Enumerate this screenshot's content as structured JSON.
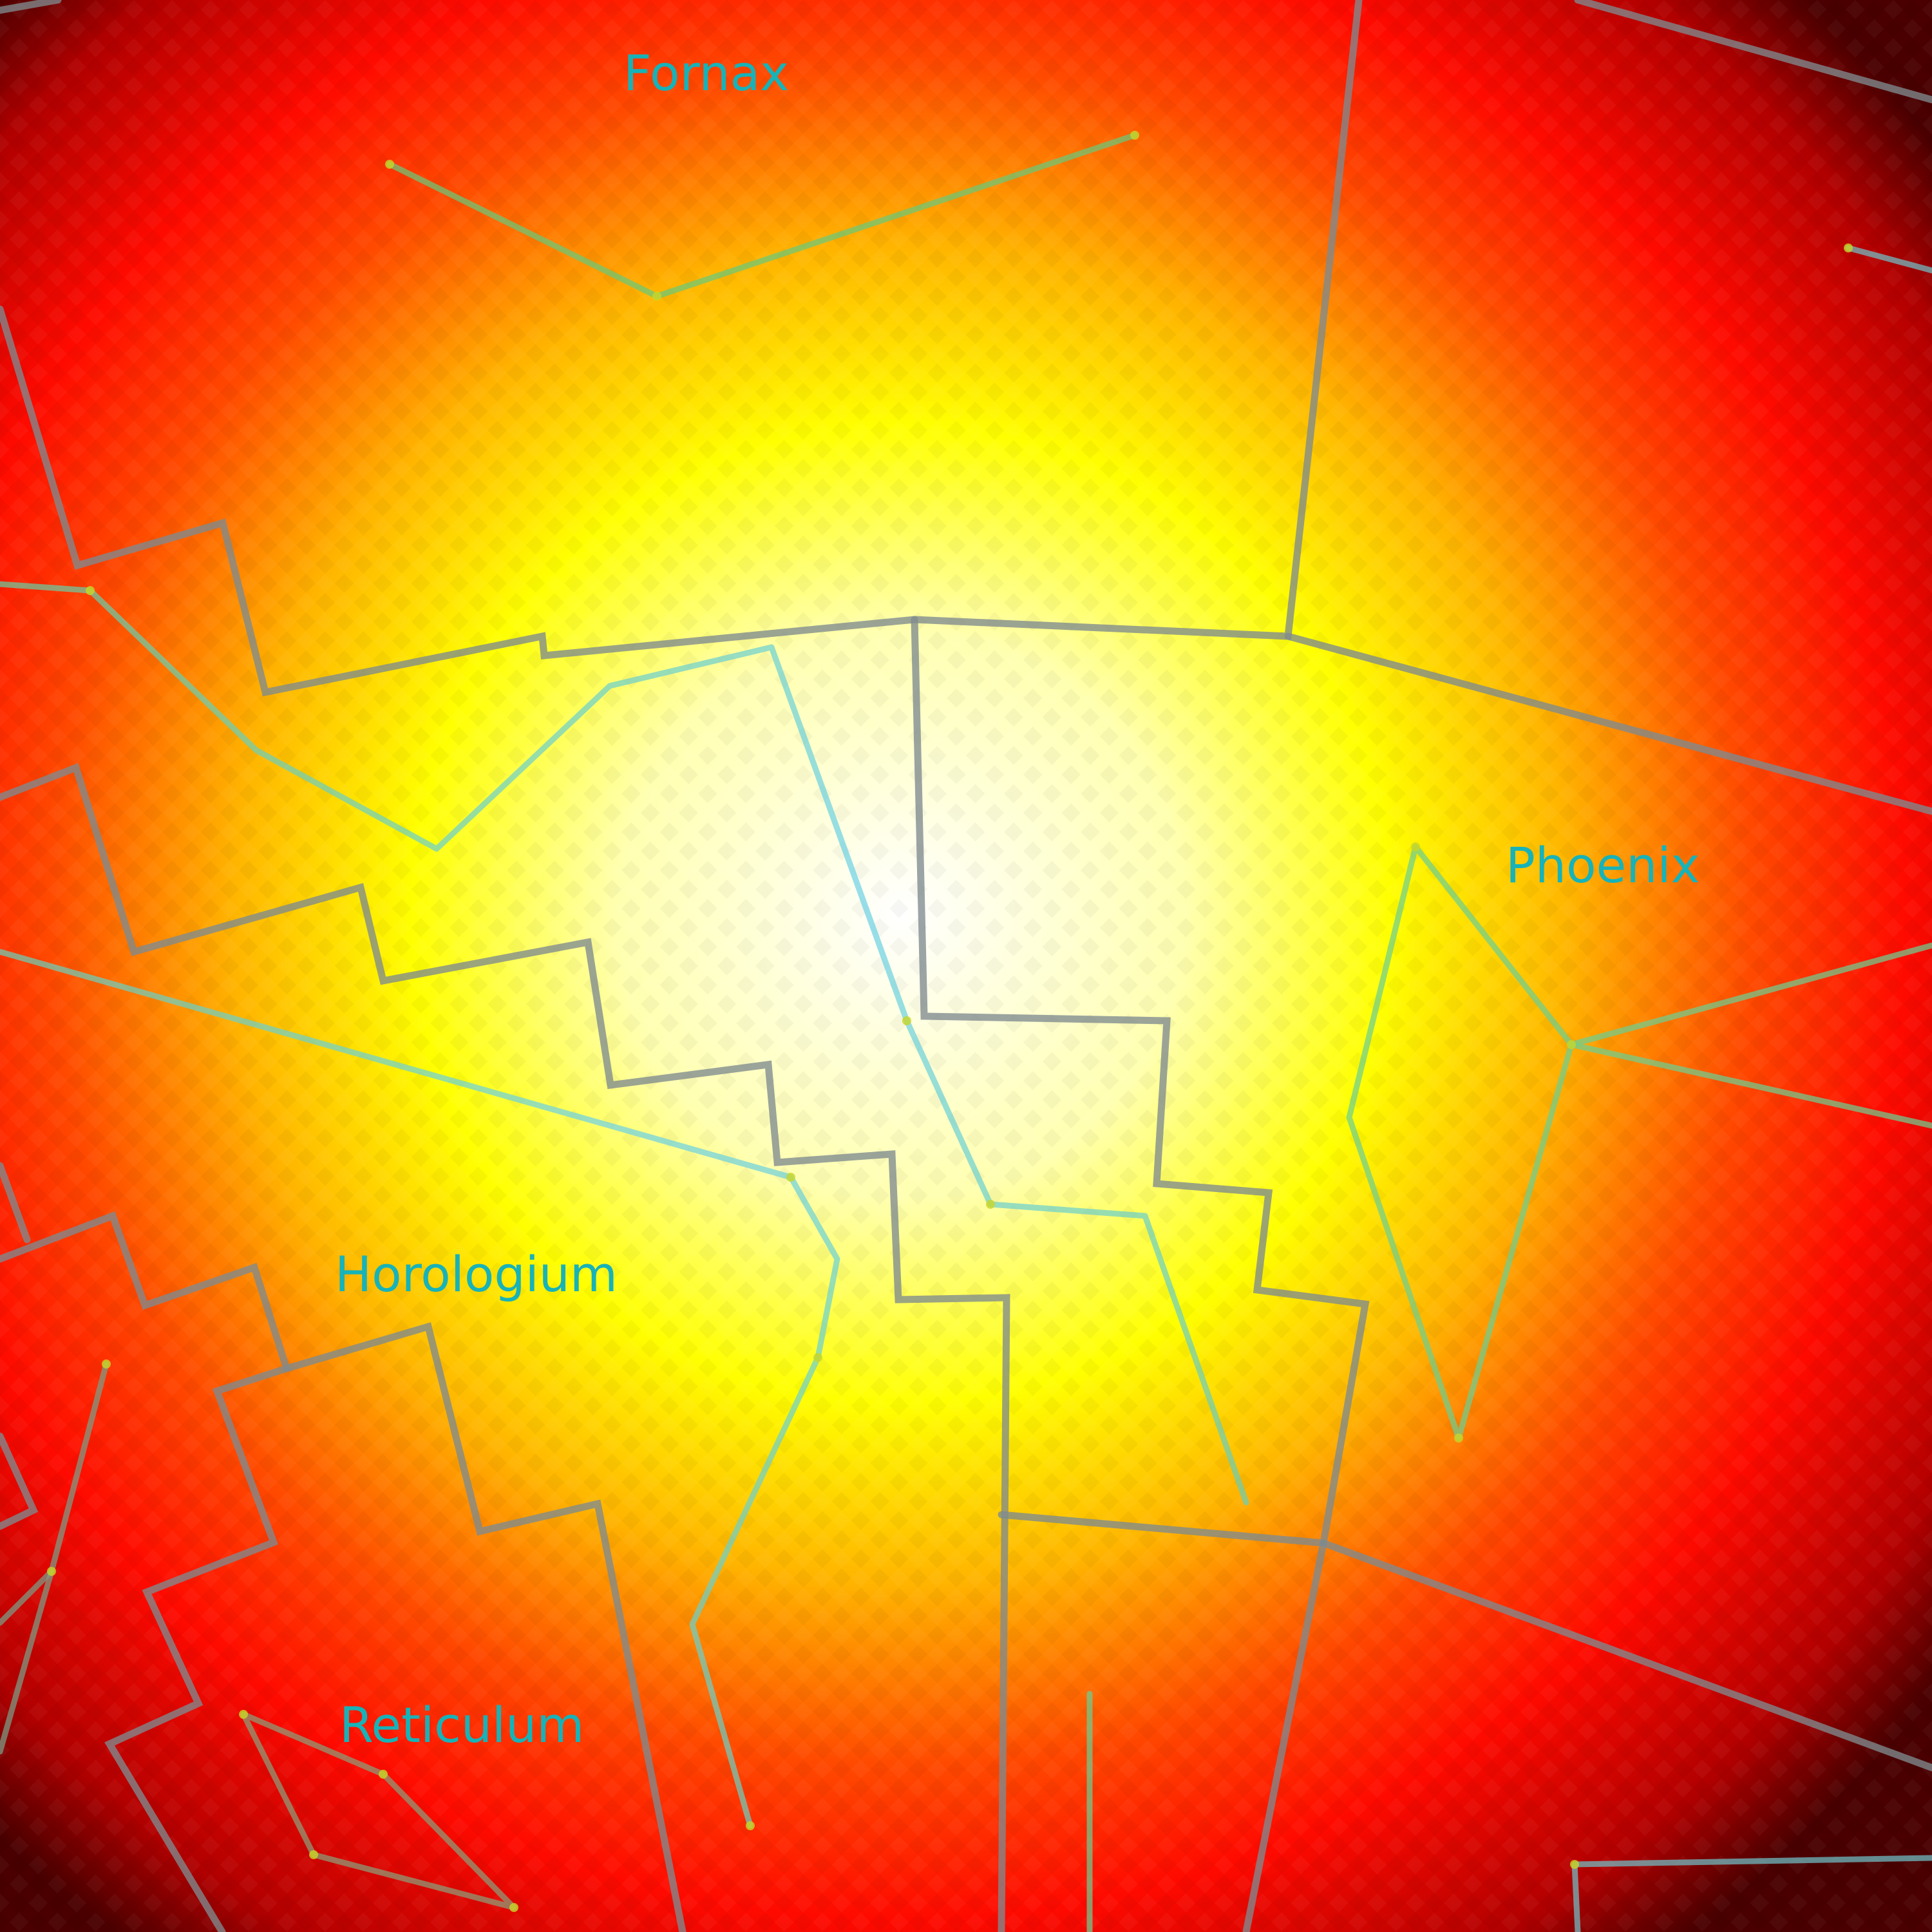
{
  "constellations": {
    "fornax": {
      "label": "Fornax"
    },
    "phoenix": {
      "label": "Phoenix"
    },
    "horologium": {
      "label": "Horologium"
    },
    "reticulum": {
      "label": "Reticulum"
    }
  },
  "colors": {
    "background_center": "#ffffff",
    "background_mid": "#ffff00",
    "background_outer": "#ff1e00",
    "background_edge": "#4a0000",
    "label_color": "#17b3b8",
    "boundary_color": "#7f8a8e",
    "stick_color_center": "#6fd2e6",
    "stick_color_outer": "#68c97a",
    "star_color": "#c8d628"
  },
  "legend": {
    "visible": false
  }
}
